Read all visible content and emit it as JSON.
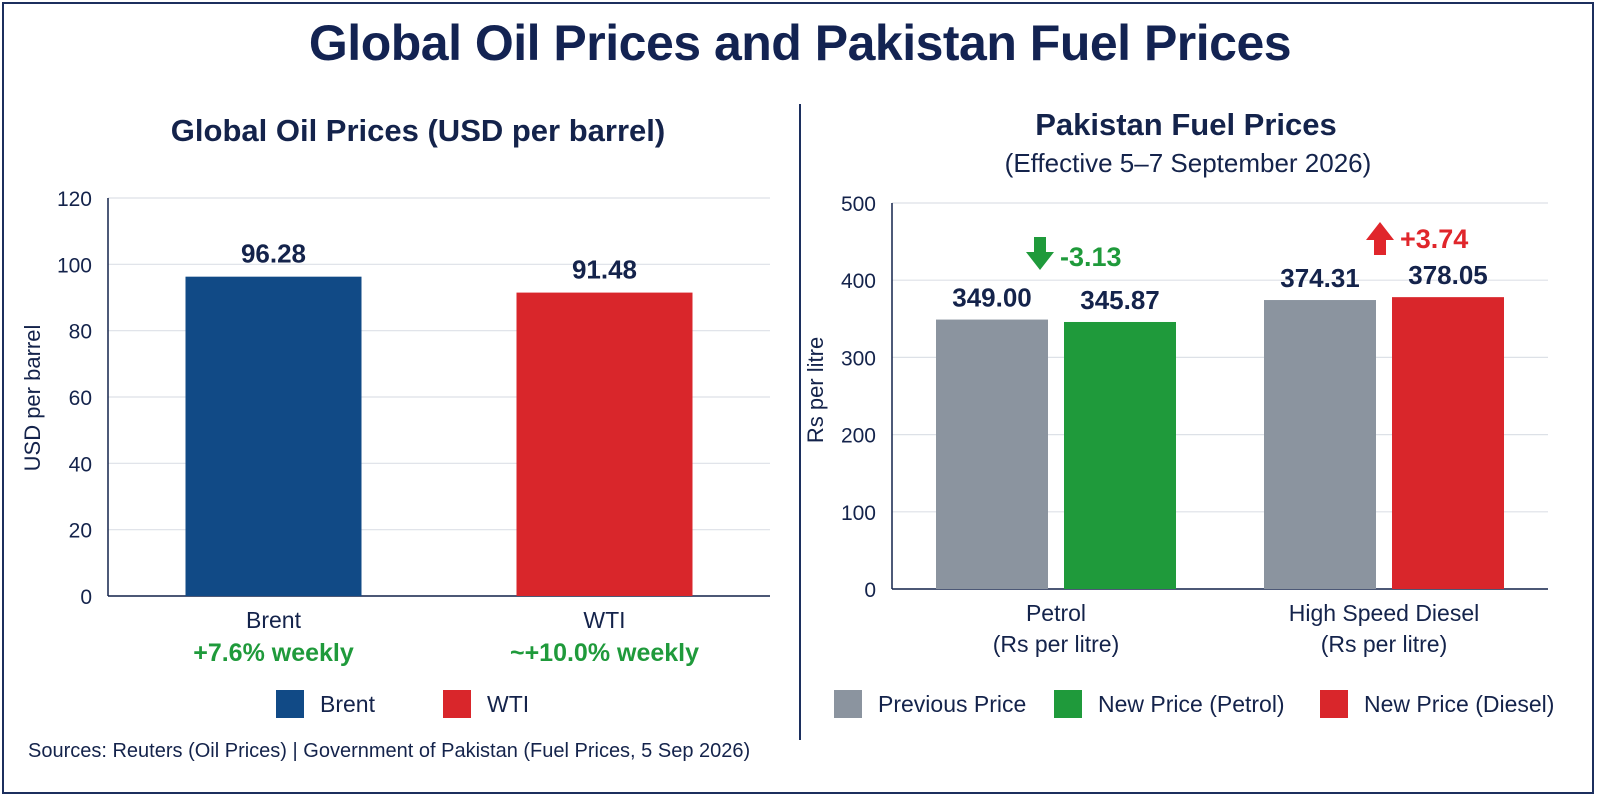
{
  "title": "Global Oil Prices and Pakistan Fuel Prices",
  "sources": "Sources: Reuters (Oil Prices) | Government of Pakistan (Fuel Prices, 5 Sep 2026)",
  "chart_data": [
    {
      "type": "bar",
      "title": "Global Oil Prices (USD per barrel)",
      "ylabel": "USD per barrel",
      "ylim": [
        0,
        120
      ],
      "yticks": [
        "0",
        "20",
        "40",
        "60",
        "80",
        "100",
        "120"
      ],
      "categories": [
        "Brent",
        "WTI"
      ],
      "category_changes": [
        "+7.6% weekly",
        "~+10.0% weekly"
      ],
      "series": [
        {
          "name": "Brent",
          "color": "#114a86",
          "values": [
            96.28,
            null
          ],
          "labels": [
            "96.28",
            null
          ]
        },
        {
          "name": "WTI",
          "color": "#d9262b",
          "values": [
            null,
            91.48
          ],
          "labels": [
            null,
            "91.48"
          ]
        }
      ],
      "grid": true,
      "legend": "bottom"
    },
    {
      "type": "bar",
      "title": "Pakistan Fuel Prices",
      "subtitle": "(Effective 5–7 September 2026)",
      "ylabel": "Rs per litre",
      "ylim": [
        0,
        500
      ],
      "yticks": [
        "0",
        "100",
        "200",
        "300",
        "400",
        "500"
      ],
      "categories": [
        {
          "line1": "Petrol",
          "line2": "(Rs per litre)"
        },
        {
          "line1": "High Speed Diesel",
          "line2": "(Rs per litre)"
        }
      ],
      "series": [
        {
          "name": "Previous Price",
          "color": "#8b949f",
          "values": [
            349.0,
            374.31
          ],
          "labels": [
            "349.00",
            "374.31"
          ]
        },
        {
          "name": "New Price (Petrol)",
          "color": "#1f9a3b",
          "values": [
            345.87,
            null
          ],
          "labels": [
            "345.87",
            null
          ]
        },
        {
          "name": "New Price (Diesel)",
          "color": "#d9262b",
          "values": [
            null,
            378.05
          ],
          "labels": [
            null,
            "378.05"
          ]
        }
      ],
      "annotations": [
        {
          "category": "Petrol",
          "text": "-3.13",
          "direction": "down",
          "color": "#1f9a3b"
        },
        {
          "category": "High Speed Diesel",
          "text": "+3.74",
          "direction": "up",
          "color": "#e0262b"
        }
      ],
      "grid": true,
      "legend": "bottom"
    }
  ]
}
